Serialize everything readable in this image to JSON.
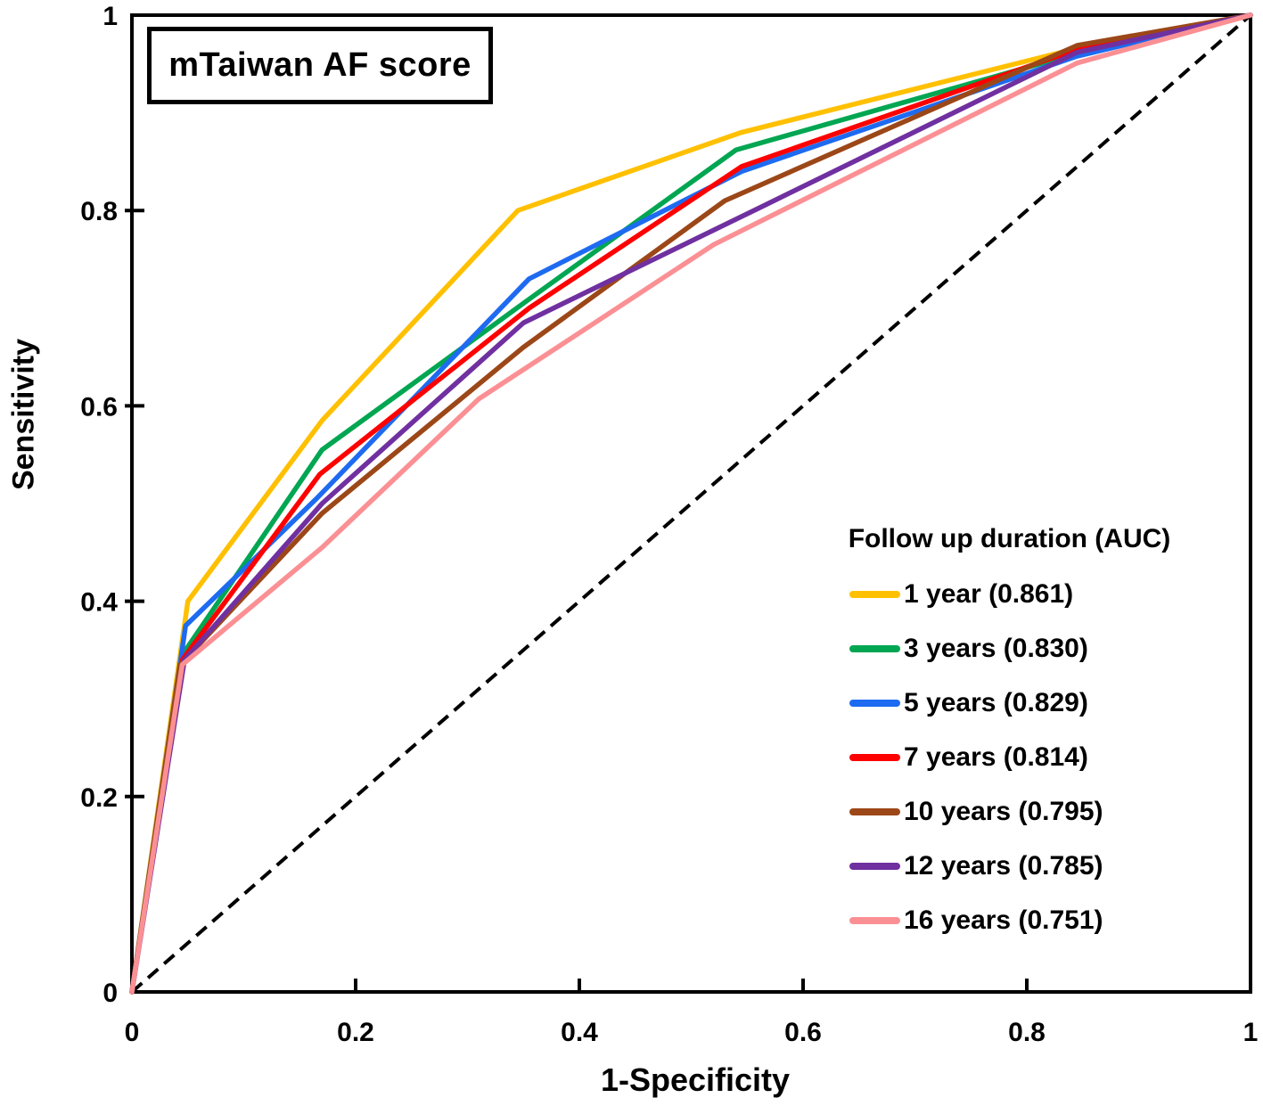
{
  "figure": {
    "title": "mTaiwan AF score"
  },
  "chart_data": {
    "type": "line",
    "title": "mTaiwan AF score",
    "xlabel": "1-Specificity",
    "ylabel": "Sensitivity",
    "xlim": [
      0,
      1
    ],
    "ylim": [
      0,
      1
    ],
    "x_ticks": [
      0,
      0.2,
      0.4,
      0.6,
      0.8,
      1
    ],
    "y_ticks": [
      0,
      0.2,
      0.4,
      0.6,
      0.8,
      1
    ],
    "grid": false,
    "legend_title": "Follow up duration (AUC)",
    "legend_position": "lower-right-inside",
    "axis_color": "#000000",
    "reference_line": {
      "style": "dashed",
      "color": "#000000",
      "from": [
        0,
        0
      ],
      "to": [
        1,
        1
      ]
    },
    "series": [
      {
        "name": "1-year",
        "label": "1 year (0.861)",
        "auc": "0.861",
        "color": "#FFC000",
        "points": [
          [
            0,
            0
          ],
          [
            0.05,
            0.4
          ],
          [
            0.17,
            0.585
          ],
          [
            0.345,
            0.8
          ],
          [
            0.545,
            0.88
          ],
          [
            0.845,
            0.966
          ],
          [
            1,
            1
          ]
        ]
      },
      {
        "name": "3-years",
        "label": "3 years (0.830)",
        "auc": "0.830",
        "color": "#00A651",
        "points": [
          [
            0,
            0
          ],
          [
            0.045,
            0.345
          ],
          [
            0.17,
            0.555
          ],
          [
            0.35,
            0.705
          ],
          [
            0.54,
            0.862
          ],
          [
            0.845,
            0.961
          ],
          [
            1,
            1
          ]
        ]
      },
      {
        "name": "5-years",
        "label": "5 years (0.829)",
        "auc": "0.829",
        "color": "#1E6BF1",
        "points": [
          [
            0,
            0
          ],
          [
            0.048,
            0.375
          ],
          [
            0.165,
            0.505
          ],
          [
            0.355,
            0.73
          ],
          [
            0.545,
            0.84
          ],
          [
            0.845,
            0.958
          ],
          [
            1,
            1
          ]
        ]
      },
      {
        "name": "7-years",
        "label": "7 years (0.814)",
        "auc": "0.814",
        "color": "#FF0000",
        "points": [
          [
            0,
            0
          ],
          [
            0.045,
            0.34
          ],
          [
            0.168,
            0.53
          ],
          [
            0.355,
            0.7
          ],
          [
            0.545,
            0.845
          ],
          [
            0.845,
            0.965
          ],
          [
            1,
            1
          ]
        ]
      },
      {
        "name": "10-years",
        "label": "10 years (0.795)",
        "auc": "0.795",
        "color": "#9C4718",
        "points": [
          [
            0,
            0
          ],
          [
            0.043,
            0.335
          ],
          [
            0.17,
            0.49
          ],
          [
            0.35,
            0.66
          ],
          [
            0.53,
            0.81
          ],
          [
            0.845,
            0.969
          ],
          [
            1,
            1
          ]
        ]
      },
      {
        "name": "12-years",
        "label": "12 years (0.785)",
        "auc": "0.785",
        "color": "#7030A0",
        "points": [
          [
            0,
            0
          ],
          [
            0.047,
            0.34
          ],
          [
            0.17,
            0.5
          ],
          [
            0.35,
            0.685
          ],
          [
            0.565,
            0.805
          ],
          [
            0.845,
            0.962
          ],
          [
            1,
            1
          ]
        ]
      },
      {
        "name": "16-years",
        "label": "16 years (0.751)",
        "auc": "0.751",
        "color": "#FB9094",
        "points": [
          [
            0,
            0
          ],
          [
            0.045,
            0.335
          ],
          [
            0.17,
            0.455
          ],
          [
            0.31,
            0.607
          ],
          [
            0.52,
            0.765
          ],
          [
            0.845,
            0.951
          ],
          [
            1,
            1
          ]
        ]
      }
    ]
  }
}
